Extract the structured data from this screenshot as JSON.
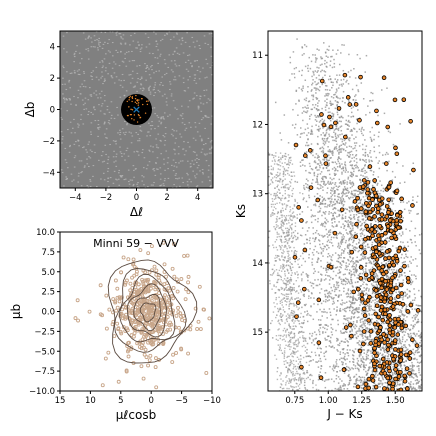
{
  "colors": {
    "background_field": "#808080",
    "field_stars": "#8a8a8a",
    "dense_cloud": "#9a9a9a",
    "selected_fill": "#e8862a",
    "selected_edge": "#000000",
    "cluster_disk": "#000000",
    "cluster_center": "#1f77b4",
    "pm_points": "#c8a68a",
    "contour": "#5a4a40"
  },
  "chart_data": [
    {
      "id": "spatial",
      "type": "scatter",
      "xlabel": "Δℓ",
      "ylabel": "Δb",
      "xlim": [
        -5,
        5
      ],
      "ylim": [
        -5,
        5
      ],
      "xticks": [
        "−4",
        "−2",
        "0",
        "2",
        "4"
      ],
      "yticks": [
        "−4",
        "−2",
        "0",
        "2",
        "4"
      ],
      "xtick_values": [
        -4,
        -2,
        0,
        2,
        4
      ],
      "ytick_values": [
        -4,
        -2,
        0,
        2,
        4
      ],
      "cluster": {
        "center": [
          0,
          0
        ],
        "radius": 1,
        "center_marker": "×"
      },
      "description_points": "dense field of gray stars with a black disk of cluster members at centre"
    },
    {
      "id": "proper_motion",
      "type": "scatter",
      "annotation": "Minni 59 − VVV",
      "xlabel": "μℓcosb",
      "ylabel": "μb",
      "xlim": [
        15,
        -10
      ],
      "ylim": [
        -10,
        10
      ],
      "xticks": [
        "15",
        "10",
        "5",
        "0",
        "−5",
        "−10"
      ],
      "yticks": [
        "−10.0",
        "−7.5",
        "−5.0",
        "−2.5",
        "0.0",
        "2.5",
        "5.0",
        "7.5",
        "10.0"
      ],
      "xtick_values": [
        15,
        10,
        5,
        0,
        -5,
        -10
      ],
      "ytick_values": [
        -10,
        -7.5,
        -5,
        -2.5,
        0,
        2.5,
        5,
        7.5,
        10
      ],
      "center": [
        0.5,
        0.0
      ],
      "contours_sigma": [
        1.2,
        2.2,
        3.2,
        4.3,
        5.4,
        6.8
      ]
    },
    {
      "id": "cmd",
      "type": "scatter",
      "xlabel": "J − Ks",
      "ylabel": "Ks",
      "xlim": [
        0.55,
        1.7
      ],
      "ylim": [
        15.85,
        10.65
      ],
      "xticks": [
        "0.75",
        "1.00",
        "1.25",
        "1.50"
      ],
      "yticks": [
        "11",
        "12",
        "13",
        "14",
        "15"
      ],
      "xtick_values": [
        0.75,
        1.0,
        1.25,
        1.5
      ],
      "ytick_values": [
        11,
        12,
        13,
        14,
        15
      ],
      "description_points": "gray field-star colour–magnitude distribution with orange black-edged cluster members concentrated at J−Ks≈1.3–1.6, Ks≈12.8–15.8"
    }
  ]
}
